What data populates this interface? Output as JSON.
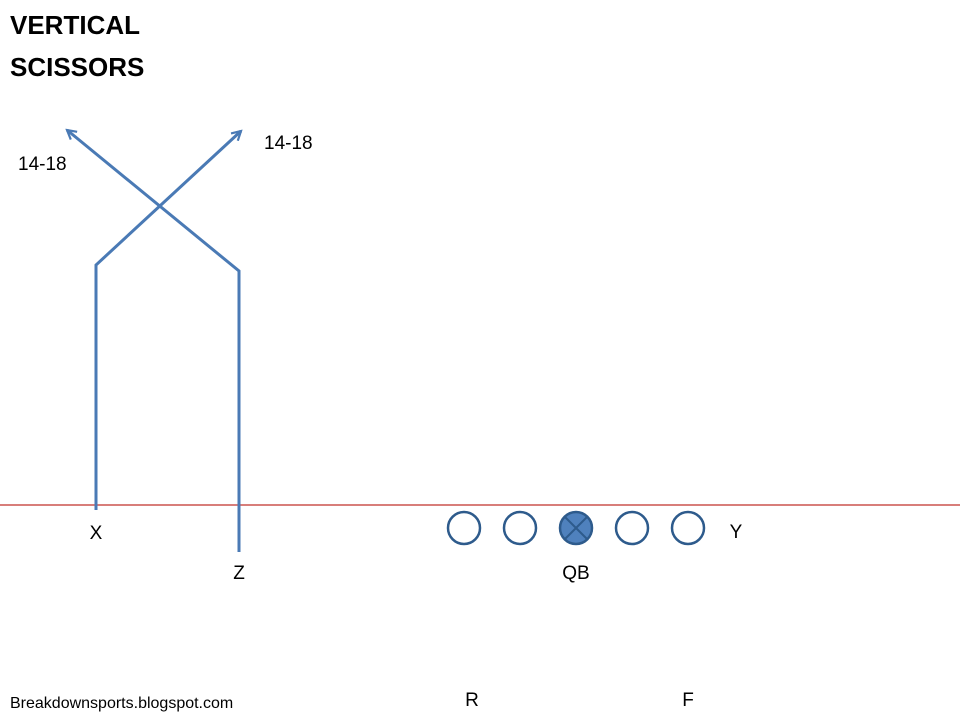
{
  "title": {
    "lines": [
      "VERTICAL",
      "SCISSORS"
    ]
  },
  "routes": [
    {
      "label": "14-18"
    },
    {
      "label": "14-18"
    }
  ],
  "players": [
    {
      "label": "X"
    },
    {
      "label": "Z"
    },
    {
      "label": "QB"
    },
    {
      "label": "Y"
    },
    {
      "label": "R"
    },
    {
      "label": "F"
    }
  ],
  "footer": "Breakdownsports.blogspot.com"
}
